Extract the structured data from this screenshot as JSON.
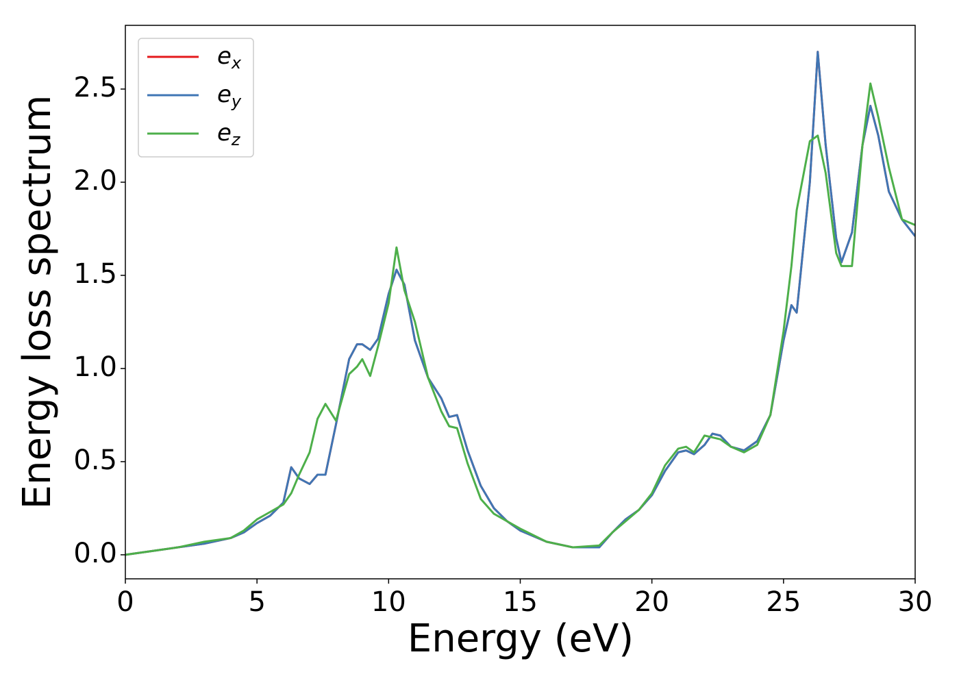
{
  "chart_data": {
    "type": "line",
    "xlabel": "Energy (eV)",
    "ylabel": "Energy loss spectrum",
    "x": [
      0,
      1,
      2,
      3,
      4,
      4.5,
      5,
      5.5,
      6,
      6.3,
      6.6,
      7,
      7.3,
      7.6,
      8,
      8.5,
      8.8,
      9,
      9.3,
      9.6,
      10,
      10.3,
      10.6,
      11,
      11.5,
      12,
      12.3,
      12.6,
      13,
      13.5,
      14,
      14.5,
      15,
      16,
      17,
      18,
      18.5,
      19,
      19.5,
      20,
      20.5,
      21,
      21.3,
      21.6,
      22,
      22.3,
      22.6,
      23,
      23.5,
      24,
      24.5,
      25,
      25.3,
      25.5,
      26,
      26.3,
      26.6,
      27,
      27.2,
      27.6,
      28,
      28.3,
      28.6,
      29,
      29.5,
      30
    ],
    "series": [
      {
        "name": "e_x",
        "color": "#e41a1c",
        "values": [
          0,
          0.02,
          0.04,
          0.06,
          0.09,
          0.12,
          0.17,
          0.21,
          0.28,
          0.47,
          0.41,
          0.38,
          0.43,
          0.43,
          0.7,
          1.05,
          1.13,
          1.13,
          1.1,
          1.16,
          1.4,
          1.53,
          1.45,
          1.15,
          0.95,
          0.84,
          0.74,
          0.75,
          0.56,
          0.37,
          0.25,
          0.18,
          0.13,
          0.07,
          0.04,
          0.04,
          0.12,
          0.19,
          0.24,
          0.32,
          0.45,
          0.55,
          0.56,
          0.54,
          0.59,
          0.65,
          0.64,
          0.58,
          0.56,
          0.61,
          0.75,
          1.15,
          1.34,
          1.3,
          2.0,
          2.7,
          2.2,
          1.7,
          1.57,
          1.73,
          2.2,
          2.41,
          2.25,
          1.95,
          1.8,
          1.71
        ]
      },
      {
        "name": "e_y",
        "color": "#3f76b4",
        "values": [
          0,
          0.02,
          0.04,
          0.06,
          0.09,
          0.12,
          0.17,
          0.21,
          0.28,
          0.47,
          0.41,
          0.38,
          0.43,
          0.43,
          0.7,
          1.05,
          1.13,
          1.13,
          1.1,
          1.16,
          1.4,
          1.53,
          1.45,
          1.15,
          0.95,
          0.84,
          0.74,
          0.75,
          0.56,
          0.37,
          0.25,
          0.18,
          0.13,
          0.07,
          0.04,
          0.04,
          0.12,
          0.19,
          0.24,
          0.32,
          0.45,
          0.55,
          0.56,
          0.54,
          0.59,
          0.65,
          0.64,
          0.58,
          0.56,
          0.61,
          0.75,
          1.15,
          1.34,
          1.3,
          2.0,
          2.7,
          2.2,
          1.7,
          1.57,
          1.73,
          2.2,
          2.41,
          2.25,
          1.95,
          1.8,
          1.71
        ]
      },
      {
        "name": "e_z",
        "color": "#4daf4a",
        "values": [
          0,
          0.02,
          0.04,
          0.07,
          0.09,
          0.13,
          0.19,
          0.23,
          0.27,
          0.33,
          0.43,
          0.55,
          0.73,
          0.81,
          0.72,
          0.97,
          1.01,
          1.05,
          0.96,
          1.12,
          1.35,
          1.65,
          1.42,
          1.25,
          0.95,
          0.77,
          0.69,
          0.68,
          0.49,
          0.3,
          0.22,
          0.18,
          0.14,
          0.07,
          0.04,
          0.05,
          0.12,
          0.18,
          0.24,
          0.33,
          0.48,
          0.57,
          0.58,
          0.55,
          0.64,
          0.63,
          0.62,
          0.58,
          0.55,
          0.59,
          0.75,
          1.2,
          1.55,
          1.85,
          2.22,
          2.25,
          2.05,
          1.62,
          1.55,
          1.55,
          2.2,
          2.53,
          2.35,
          2.08,
          1.8,
          1.77
        ]
      }
    ],
    "xlim": [
      0,
      30
    ],
    "xticks": [
      0,
      5,
      10,
      15,
      20,
      25,
      30
    ],
    "ylim": [
      -0.129,
      2.842
    ],
    "yticks": [
      {
        "value": 0,
        "label": "0.0"
      },
      0.5,
      {
        "value": 1,
        "label": "1.0"
      },
      1.5,
      {
        "value": 2,
        "label": "2.0"
      },
      2.5
    ],
    "legend": "upper left"
  }
}
